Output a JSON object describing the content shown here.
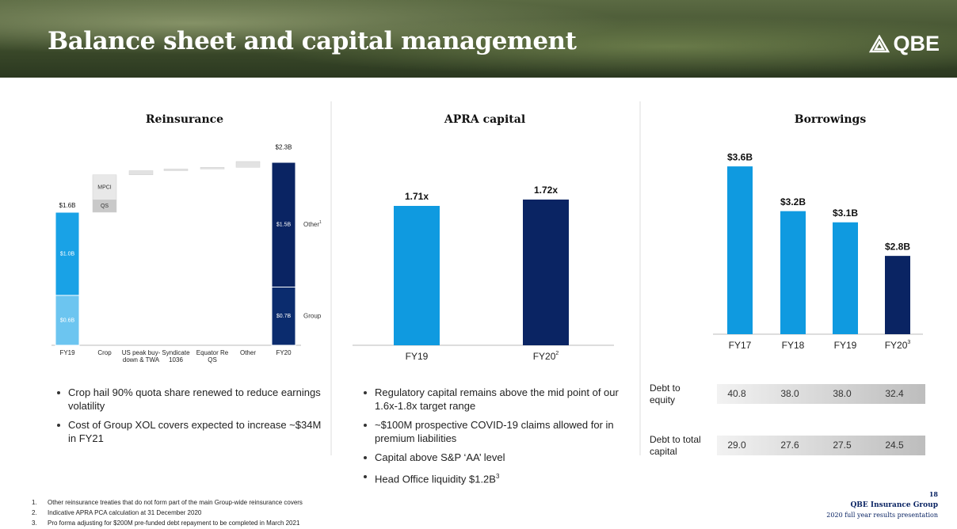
{
  "header": {
    "title": "Balance sheet and capital management",
    "logo": "QBE"
  },
  "chart_data": [
    {
      "type": "waterfall",
      "title": "Reinsurance",
      "categories": [
        "FY19",
        "Crop",
        "US peak buy-down & TWA",
        "Syndicate 1036",
        "Equator Re QS",
        "Other",
        "FY20"
      ],
      "ylim": [
        0,
        2.4
      ],
      "totals": {
        "values": [
          1.6,
          null,
          null,
          null,
          null,
          null,
          2.3
        ],
        "value_labels": [
          "$1.6B",
          null,
          null,
          null,
          null,
          null,
          "$2.3B"
        ]
      },
      "series": [
        {
          "name": "Group",
          "colors": [
            "#6cc5f0",
            null,
            null,
            null,
            null,
            null,
            "#0b2c6e"
          ],
          "values": [
            0.6,
            null,
            null,
            null,
            null,
            null,
            0.7
          ],
          "value_labels": [
            "$0.6B",
            null,
            null,
            null,
            null,
            null,
            "$0.7B"
          ]
        },
        {
          "name": "Other",
          "note": "1",
          "colors": [
            "#19a2e6",
            null,
            null,
            null,
            null,
            null,
            "#0a2463"
          ],
          "values": [
            1.0,
            null,
            null,
            null,
            null,
            null,
            1.5
          ],
          "value_labels": [
            "$1.0B",
            null,
            null,
            null,
            null,
            null,
            "$1.5B"
          ]
        },
        {
          "name": "QS",
          "color": "#c9c9c9",
          "values": [
            null,
            0.15,
            null,
            null,
            null,
            null,
            null
          ]
        },
        {
          "name": "MPCI",
          "color": "#e8e8e8",
          "values": [
            null,
            0.3,
            null,
            null,
            null,
            null,
            null
          ]
        },
        {
          "color": "#e2e2e2",
          "values": [
            null,
            null,
            0.05,
            0.02,
            0.02,
            0.07,
            null
          ]
        }
      ],
      "bullets": [
        {
          "text": "Crop hail 90% quota share renewed to reduce earnings volatility"
        },
        {
          "text": "Cost of Group XOL covers expected to increase ~$34M in FY21"
        }
      ]
    },
    {
      "type": "bar",
      "title": "APRA capital",
      "categories": [
        "FY19",
        "FY20"
      ],
      "category_notes": [
        null,
        "2"
      ],
      "values": [
        1.71,
        1.72
      ],
      "value_labels": [
        "1.71x",
        "1.72x"
      ],
      "colors": [
        "#0f9ae0",
        "#0a2463"
      ],
      "ylim": [
        1.49,
        1.75
      ],
      "bullets": [
        {
          "text": "Regulatory capital remains above the mid point of our 1.6x-1.8x target range"
        },
        {
          "text": "~$100M prospective COVID-19 claims allowed for in premium liabilities"
        },
        {
          "text": "Capital above S&P ‘AA’ level"
        },
        {
          "text": "Head Office liquidity $1.2B",
          "note": "3"
        }
      ]
    },
    {
      "type": "bar",
      "title": "Borrowings",
      "categories": [
        "FY17",
        "FY18",
        "FY19",
        "FY20"
      ],
      "category_notes": [
        null,
        null,
        null,
        "3"
      ],
      "values": [
        3.6,
        3.2,
        3.1,
        2.8
      ],
      "value_labels": [
        "$3.6B",
        "$3.2B",
        "$3.1B",
        "$2.8B"
      ],
      "colors": [
        "#0f9ae0",
        "#0f9ae0",
        "#0f9ae0",
        "#0a2463"
      ],
      "ylim": [
        2.1,
        3.7
      ],
      "table": {
        "rows": [
          {
            "label": "Debt to equity",
            "cells": [
              "40.8",
              "38.0",
              "38.0",
              "32.4"
            ]
          },
          {
            "label": "Debt to total capital",
            "cells": [
              "29.0",
              "27.6",
              "27.5",
              "24.5"
            ]
          }
        ]
      }
    }
  ],
  "footnotes": [
    {
      "number": "1.",
      "text": "Other reinsurance treaties that do not form part of the main Group-wide reinsurance covers"
    },
    {
      "number": "2.",
      "text": "Indicative APRA PCA calculation at 31 December 2020"
    },
    {
      "number": "3.",
      "text": "Pro forma adjusting for $200M pre-funded debt repayment to be completed in March 2021"
    }
  ],
  "footer": {
    "page": "18",
    "company": "QBE Insurance Group",
    "presentation": "2020 full year results presentation"
  }
}
